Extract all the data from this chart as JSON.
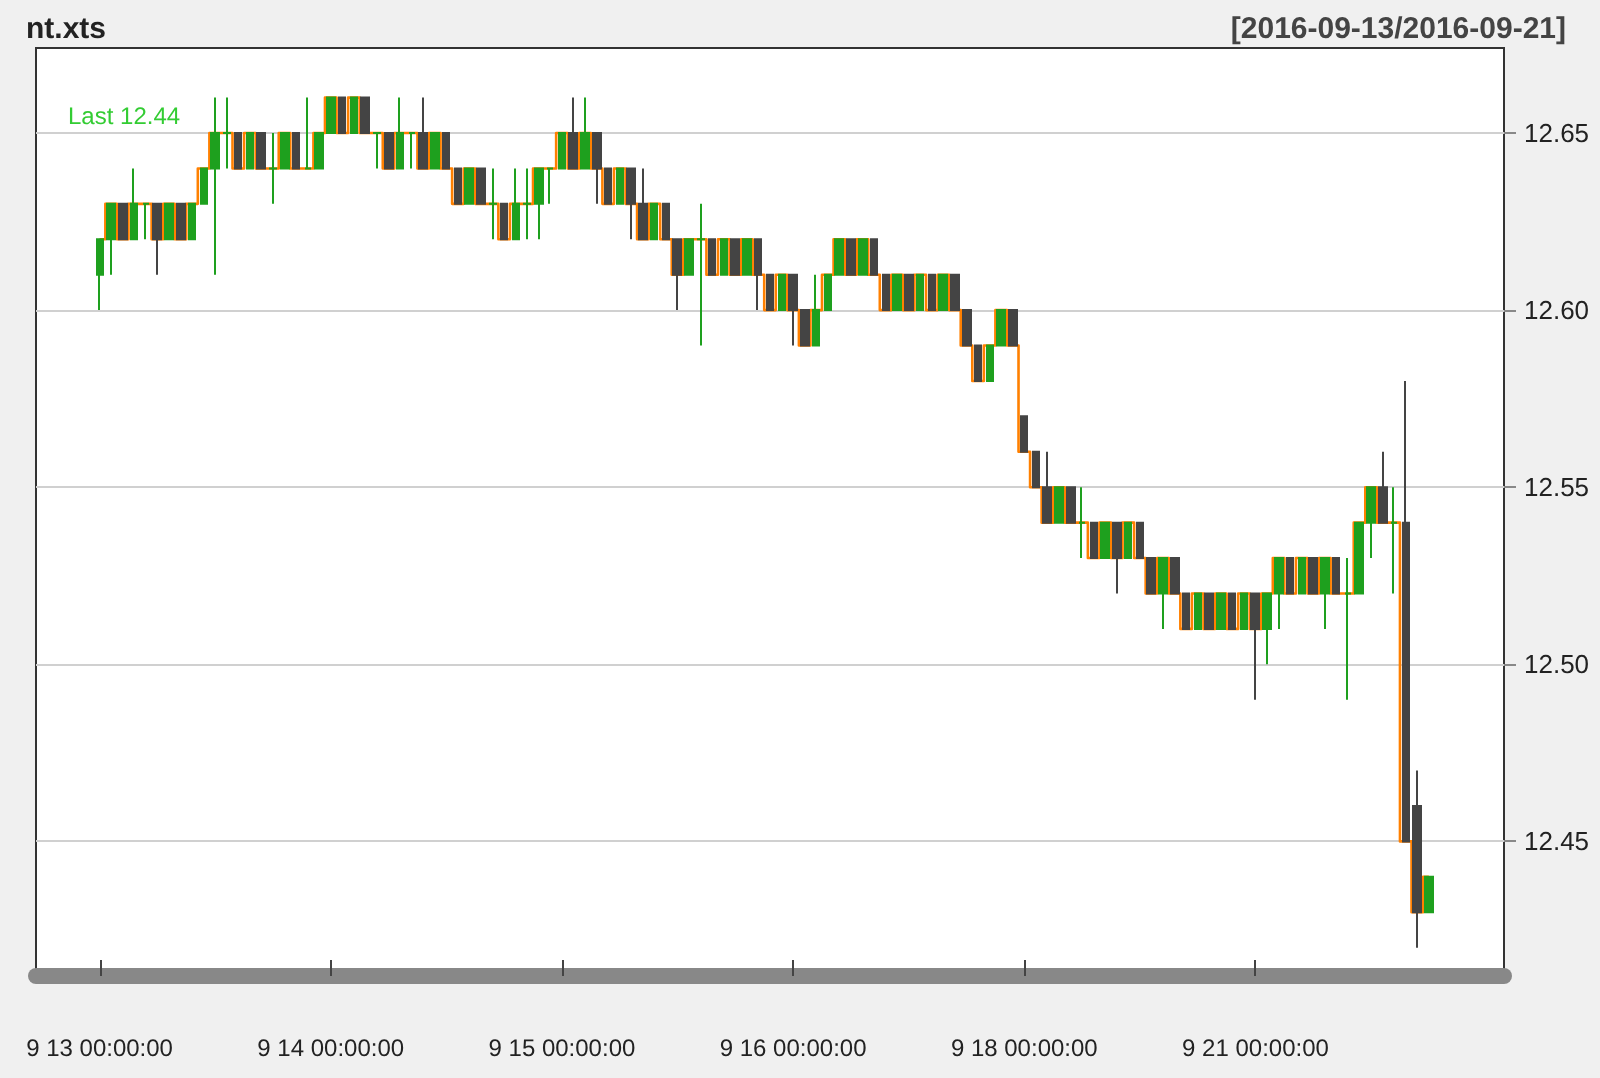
{
  "chart_data": {
    "type": "candlestick",
    "title": "nt.xts",
    "subtitle": "[2016-09-13/2016-09-21]",
    "annotations": [
      {
        "text": "Last 12.44"
      }
    ],
    "categories": [
      "9 13 00:00:00",
      null,
      null,
      null,
      null,
      null,
      null,
      null,
      null,
      null,
      null,
      null,
      null,
      null,
      null,
      null,
      null,
      null,
      null,
      null,
      "9 14 00:00:00",
      null,
      null,
      null,
      null,
      null,
      null,
      null,
      null,
      null,
      null,
      null,
      null,
      null,
      null,
      null,
      null,
      null,
      null,
      null,
      "9 15 00:00:00",
      null,
      null,
      null,
      null,
      null,
      null,
      null,
      null,
      null,
      null,
      null,
      null,
      null,
      null,
      null,
      null,
      null,
      null,
      null,
      "9 16 00:00:00",
      null,
      null,
      null,
      null,
      null,
      null,
      null,
      null,
      null,
      null,
      null,
      null,
      null,
      null,
      null,
      null,
      null,
      null,
      null,
      "9 18 00:00:00",
      null,
      null,
      null,
      null,
      null,
      null,
      null,
      null,
      null,
      null,
      null,
      null,
      null,
      null,
      null,
      null,
      null,
      null,
      null,
      "9 21 00:00:00",
      null,
      null,
      null,
      null,
      null,
      null,
      null,
      null,
      null,
      null,
      null,
      null,
      null,
      null,
      null
    ],
    "ohlc": [
      [
        12.61,
        12.62,
        12.6,
        12.62
      ],
      [
        12.62,
        12.63,
        12.61,
        12.63
      ],
      [
        12.63,
        12.63,
        12.62,
        12.62
      ],
      [
        12.62,
        12.64,
        12.62,
        12.63
      ],
      [
        12.63,
        12.63,
        12.62,
        12.63
      ],
      [
        12.63,
        12.63,
        12.61,
        12.62
      ],
      [
        12.62,
        12.63,
        12.62,
        12.63
      ],
      [
        12.63,
        12.63,
        12.62,
        12.62
      ],
      [
        12.62,
        12.63,
        12.62,
        12.63
      ],
      [
        12.63,
        12.64,
        12.63,
        12.64
      ],
      [
        12.64,
        12.66,
        12.61,
        12.65
      ],
      [
        12.65,
        12.66,
        12.64,
        12.65
      ],
      [
        12.65,
        12.65,
        12.64,
        12.64
      ],
      [
        12.64,
        12.65,
        12.64,
        12.65
      ],
      [
        12.65,
        12.65,
        12.64,
        12.64
      ],
      [
        12.64,
        12.65,
        12.63,
        12.64
      ],
      [
        12.64,
        12.65,
        12.64,
        12.65
      ],
      [
        12.65,
        12.65,
        12.64,
        12.64
      ],
      [
        12.64,
        12.66,
        12.64,
        12.64
      ],
      [
        12.64,
        12.65,
        12.64,
        12.65
      ],
      [
        12.65,
        12.66,
        12.65,
        12.66
      ],
      [
        12.66,
        12.66,
        12.65,
        12.65
      ],
      [
        12.65,
        12.66,
        12.65,
        12.66
      ],
      [
        12.66,
        12.66,
        12.65,
        12.65
      ],
      [
        12.65,
        12.65,
        12.64,
        12.65
      ],
      [
        12.65,
        12.65,
        12.64,
        12.64
      ],
      [
        12.64,
        12.66,
        12.64,
        12.65
      ],
      [
        12.65,
        12.65,
        12.64,
        12.65
      ],
      [
        12.65,
        12.66,
        12.64,
        12.64
      ],
      [
        12.64,
        12.65,
        12.64,
        12.65
      ],
      [
        12.65,
        12.65,
        12.64,
        12.64
      ],
      [
        12.64,
        12.64,
        12.63,
        12.63
      ],
      [
        12.63,
        12.64,
        12.63,
        12.64
      ],
      [
        12.64,
        12.64,
        12.63,
        12.63
      ],
      [
        12.63,
        12.64,
        12.62,
        12.63
      ],
      [
        12.63,
        12.63,
        12.62,
        12.62
      ],
      [
        12.62,
        12.64,
        12.62,
        12.63
      ],
      [
        12.63,
        12.64,
        12.62,
        12.63
      ],
      [
        12.63,
        12.64,
        12.62,
        12.64
      ],
      [
        12.64,
        12.64,
        12.63,
        12.64
      ],
      [
        12.64,
        12.65,
        12.64,
        12.65
      ],
      [
        12.65,
        12.66,
        12.64,
        12.64
      ],
      [
        12.64,
        12.66,
        12.64,
        12.65
      ],
      [
        12.65,
        12.65,
        12.63,
        12.64
      ],
      [
        12.64,
        12.64,
        12.63,
        12.63
      ],
      [
        12.63,
        12.64,
        12.63,
        12.64
      ],
      [
        12.64,
        12.64,
        12.62,
        12.63
      ],
      [
        12.63,
        12.64,
        12.62,
        12.62
      ],
      [
        12.62,
        12.63,
        12.62,
        12.63
      ],
      [
        12.63,
        12.63,
        12.62,
        12.62
      ],
      [
        12.62,
        12.62,
        12.6,
        12.61
      ],
      [
        12.61,
        12.62,
        12.61,
        12.62
      ],
      [
        12.62,
        12.63,
        12.59,
        12.62
      ],
      [
        12.62,
        12.62,
        12.61,
        12.61
      ],
      [
        12.61,
        12.62,
        12.61,
        12.62
      ],
      [
        12.62,
        12.62,
        12.61,
        12.61
      ],
      [
        12.61,
        12.62,
        12.61,
        12.62
      ],
      [
        12.62,
        12.62,
        12.6,
        12.61
      ],
      [
        12.61,
        12.61,
        12.6,
        12.6
      ],
      [
        12.6,
        12.61,
        12.6,
        12.61
      ],
      [
        12.61,
        12.61,
        12.59,
        12.6
      ],
      [
        12.6,
        12.6,
        12.59,
        12.59
      ],
      [
        12.59,
        12.61,
        12.59,
        12.6
      ],
      [
        12.6,
        12.61,
        12.6,
        12.61
      ],
      [
        12.61,
        12.62,
        12.61,
        12.62
      ],
      [
        12.62,
        12.62,
        12.61,
        12.61
      ],
      [
        12.61,
        12.62,
        12.61,
        12.62
      ],
      [
        12.62,
        12.62,
        12.61,
        12.61
      ],
      [
        12.61,
        12.61,
        12.6,
        12.6
      ],
      [
        12.6,
        12.61,
        12.6,
        12.61
      ],
      [
        12.61,
        12.61,
        12.6,
        12.6
      ],
      [
        12.6,
        12.61,
        12.6,
        12.61
      ],
      [
        12.61,
        12.61,
        12.6,
        12.6
      ],
      [
        12.6,
        12.61,
        12.6,
        12.61
      ],
      [
        12.61,
        12.61,
        12.6,
        12.6
      ],
      [
        12.6,
        12.6,
        12.59,
        12.59
      ],
      [
        12.59,
        12.59,
        12.58,
        12.58
      ],
      [
        12.58,
        12.59,
        12.58,
        12.59
      ],
      [
        12.59,
        12.6,
        12.59,
        12.6
      ],
      [
        12.6,
        12.6,
        12.59,
        12.59
      ],
      [
        12.57,
        12.57,
        12.56,
        12.56
      ],
      [
        12.56,
        12.56,
        12.55,
        12.55
      ],
      [
        12.55,
        12.56,
        12.54,
        12.54
      ],
      [
        12.54,
        12.55,
        12.54,
        12.55
      ],
      [
        12.55,
        12.55,
        12.54,
        12.54
      ],
      [
        12.54,
        12.55,
        12.53,
        12.54
      ],
      [
        12.54,
        12.54,
        12.53,
        12.53
      ],
      [
        12.53,
        12.54,
        12.53,
        12.54
      ],
      [
        12.54,
        12.54,
        12.52,
        12.53
      ],
      [
        12.53,
        12.54,
        12.53,
        12.54
      ],
      [
        12.54,
        12.54,
        12.53,
        12.53
      ],
      [
        12.53,
        12.53,
        12.52,
        12.52
      ],
      [
        12.52,
        12.53,
        12.51,
        12.53
      ],
      [
        12.53,
        12.53,
        12.52,
        12.52
      ],
      [
        12.52,
        12.52,
        12.51,
        12.51
      ],
      [
        12.51,
        12.52,
        12.51,
        12.52
      ],
      [
        12.52,
        12.52,
        12.51,
        12.51
      ],
      [
        12.51,
        12.52,
        12.51,
        12.52
      ],
      [
        12.52,
        12.52,
        12.51,
        12.51
      ],
      [
        12.51,
        12.52,
        12.51,
        12.52
      ],
      [
        12.52,
        12.52,
        12.49,
        12.51
      ],
      [
        12.51,
        12.52,
        12.5,
        12.52
      ],
      [
        12.52,
        12.53,
        12.51,
        12.53
      ],
      [
        12.53,
        12.53,
        12.52,
        12.52
      ],
      [
        12.52,
        12.53,
        12.52,
        12.53
      ],
      [
        12.53,
        12.53,
        12.52,
        12.52
      ],
      [
        12.52,
        12.53,
        12.51,
        12.53
      ],
      [
        12.53,
        12.53,
        12.52,
        12.52
      ],
      [
        12.52,
        12.53,
        12.49,
        12.52
      ],
      [
        12.52,
        12.54,
        12.52,
        12.54
      ],
      [
        12.54,
        12.55,
        12.53,
        12.55
      ],
      [
        12.55,
        12.56,
        12.54,
        12.54
      ],
      [
        12.54,
        12.55,
        12.52,
        12.54
      ],
      [
        12.54,
        12.58,
        12.45,
        12.45
      ],
      [
        12.46,
        12.47,
        12.42,
        12.43
      ],
      [
        12.43,
        12.44,
        12.43,
        12.44
      ]
    ],
    "colors": [
      "#1ea01e",
      "#1ea01e",
      "#444444",
      "#1ea01e",
      "#1ea01e",
      "#444444",
      "#1ea01e",
      "#444444",
      "#1ea01e",
      "#1ea01e",
      "#1ea01e",
      "#1ea01e",
      "#444444",
      "#1ea01e",
      "#444444",
      "#1ea01e",
      "#1ea01e",
      "#444444",
      "#1ea01e",
      "#1ea01e",
      "#1ea01e",
      "#444444",
      "#1ea01e",
      "#444444",
      "#1ea01e",
      "#444444",
      "#1ea01e",
      "#1ea01e",
      "#444444",
      "#1ea01e",
      "#444444",
      "#444444",
      "#1ea01e",
      "#444444",
      "#1ea01e",
      "#444444",
      "#1ea01e",
      "#1ea01e",
      "#1ea01e",
      "#1ea01e",
      "#1ea01e",
      "#444444",
      "#1ea01e",
      "#444444",
      "#444444",
      "#1ea01e",
      "#444444",
      "#444444",
      "#1ea01e",
      "#444444",
      "#444444",
      "#1ea01e",
      "#1ea01e",
      "#444444",
      "#1ea01e",
      "#444444",
      "#1ea01e",
      "#444444",
      "#444444",
      "#1ea01e",
      "#444444",
      "#444444",
      "#1ea01e",
      "#1ea01e",
      "#1ea01e",
      "#444444",
      "#1ea01e",
      "#444444",
      "#444444",
      "#1ea01e",
      "#444444",
      "#1ea01e",
      "#444444",
      "#1ea01e",
      "#444444",
      "#444444",
      "#444444",
      "#1ea01e",
      "#1ea01e",
      "#444444",
      "#444444",
      "#444444",
      "#444444",
      "#1ea01e",
      "#444444",
      "#1ea01e",
      "#444444",
      "#1ea01e",
      "#444444",
      "#1ea01e",
      "#444444",
      "#444444",
      "#1ea01e",
      "#444444",
      "#444444",
      "#1ea01e",
      "#444444",
      "#1ea01e",
      "#444444",
      "#1ea01e",
      "#444444",
      "#1ea01e",
      "#1ea01e",
      "#444444",
      "#1ea01e",
      "#444444",
      "#1ea01e",
      "#444444",
      "#1ea01e",
      "#1ea01e",
      "#1ea01e",
      "#444444",
      "#1ea01e",
      "#444444",
      "#444444",
      "#1ea01e"
    ],
    "series": [
      {
        "type": "step",
        "color": "#ff8000",
        "values": [
          12.62,
          12.63,
          12.62,
          12.63,
          12.63,
          12.62,
          12.63,
          12.62,
          12.63,
          12.64,
          12.65,
          12.65,
          12.64,
          12.65,
          12.64,
          12.64,
          12.65,
          12.64,
          12.64,
          12.65,
          12.66,
          12.65,
          12.66,
          12.65,
          12.65,
          12.64,
          12.65,
          12.65,
          12.64,
          12.65,
          12.64,
          12.63,
          12.64,
          12.63,
          12.63,
          12.62,
          12.63,
          12.63,
          12.64,
          12.64,
          12.65,
          12.64,
          12.65,
          12.64,
          12.63,
          12.64,
          12.63,
          12.62,
          12.63,
          12.62,
          12.61,
          12.62,
          12.62,
          12.61,
          12.62,
          12.61,
          12.62,
          12.61,
          12.6,
          12.61,
          12.6,
          12.59,
          12.6,
          12.61,
          12.62,
          12.61,
          12.62,
          12.61,
          12.6,
          12.61,
          12.6,
          12.61,
          12.6,
          12.61,
          12.6,
          12.59,
          12.58,
          12.59,
          12.6,
          12.59,
          12.56,
          12.55,
          12.54,
          12.55,
          12.54,
          12.54,
          12.53,
          12.54,
          12.53,
          12.54,
          12.53,
          12.52,
          12.53,
          12.52,
          12.51,
          12.52,
          12.51,
          12.52,
          12.51,
          12.52,
          12.51,
          12.52,
          12.53,
          12.52,
          12.53,
          12.52,
          12.53,
          12.52,
          12.52,
          12.54,
          12.55,
          12.54,
          12.54,
          12.45,
          12.43,
          12.44
        ]
      }
    ],
    "ylim": [
      12.412,
      12.674
    ],
    "yticks": [
      12.45,
      {
        "value": 12.5,
        "label": "12.50"
      },
      12.55,
      {
        "value": 12.6,
        "label": "12.60"
      },
      12.65
    ],
    "grid": "y"
  }
}
